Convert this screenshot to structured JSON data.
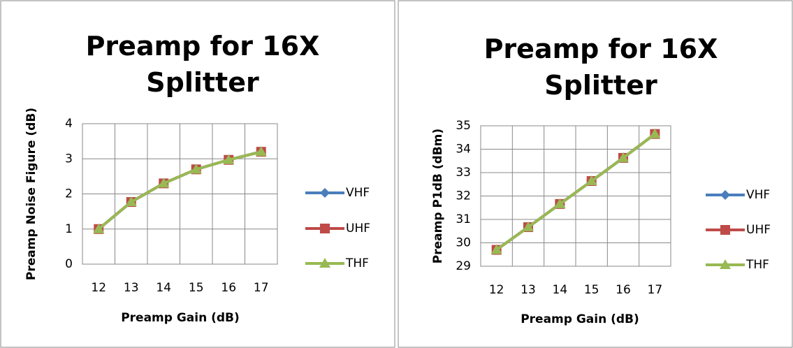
{
  "chart_data": [
    {
      "type": "line",
      "title": "Preamp for 16X Splitter",
      "x_label": "Preamp Gain (dB)",
      "y_label": "Preamp Noise Figure (dB)",
      "categories": [
        "12",
        "13",
        "14",
        "15",
        "16",
        "17"
      ],
      "series": [
        {
          "name": "VHF",
          "color": "#4a7ebb",
          "marker": "diamond",
          "values": [
            1.0,
            1.77,
            2.3,
            2.7,
            2.97,
            3.2
          ]
        },
        {
          "name": "UHF",
          "color": "#be4b48",
          "marker": "square",
          "values": [
            1.0,
            1.77,
            2.3,
            2.7,
            2.97,
            3.2
          ]
        },
        {
          "name": "THF",
          "color": "#98b954",
          "marker": "triangle",
          "values": [
            1.0,
            1.77,
            2.3,
            2.7,
            2.97,
            3.2
          ]
        }
      ],
      "ylim": [
        0,
        4
      ],
      "yticks": [
        0,
        1,
        2,
        3,
        4
      ],
      "grid": true,
      "legend": "right"
    },
    {
      "type": "line",
      "title": "Preamp for 16X Splitter",
      "x_label": "Preamp Gain (dB)",
      "y_label": "Preamp P1dB (dBm)",
      "categories": [
        "12",
        "13",
        "14",
        "15",
        "16",
        "17"
      ],
      "series": [
        {
          "name": "VHF",
          "color": "#4a7ebb",
          "marker": "diamond",
          "values": [
            29.7,
            30.67,
            31.66,
            32.64,
            33.63,
            34.65
          ]
        },
        {
          "name": "UHF",
          "color": "#be4b48",
          "marker": "square",
          "values": [
            29.7,
            30.67,
            31.66,
            32.64,
            33.63,
            34.65
          ]
        },
        {
          "name": "THF",
          "color": "#98b954",
          "marker": "triangle",
          "values": [
            29.7,
            30.67,
            31.66,
            32.64,
            33.63,
            34.65
          ]
        }
      ],
      "ylim": [
        29,
        35
      ],
      "yticks": [
        29,
        30,
        31,
        32,
        33,
        34,
        35
      ],
      "grid": true,
      "legend": "right"
    }
  ]
}
